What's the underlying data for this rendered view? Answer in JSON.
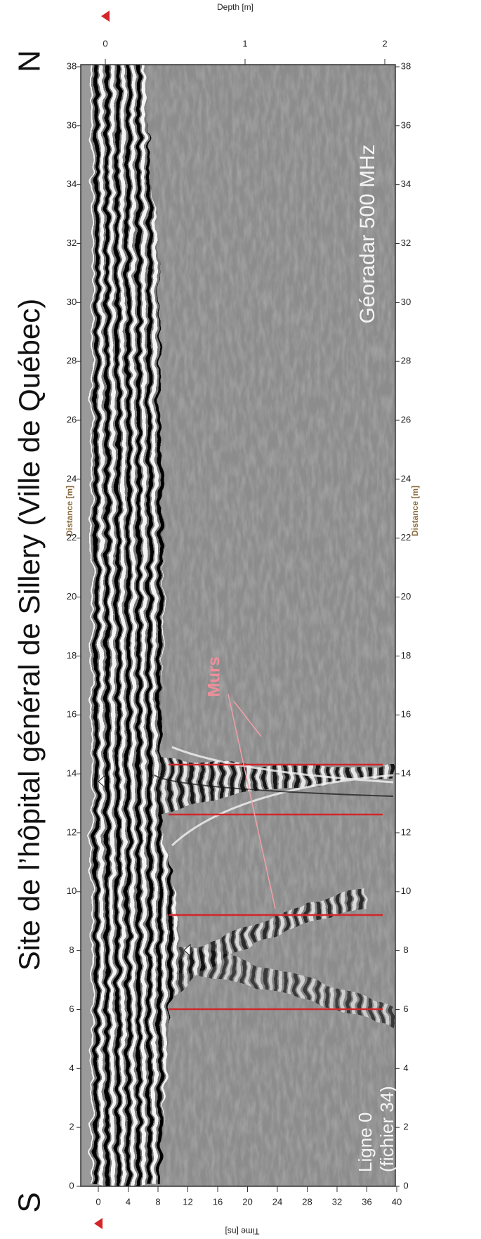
{
  "title": "Site de l’hôpital général de Sillery (Ville de Québec)",
  "direction_start": "S",
  "direction_end": "N",
  "annotation": "Murs",
  "instrument": "Géoradar 500 MHz",
  "profile": {
    "line": "Ligne 0",
    "file": "(fichier 34)"
  },
  "axes": {
    "distance": {
      "label": "Distance [m]",
      "ticks": [
        0,
        2,
        4,
        6,
        8,
        10,
        12,
        14,
        16,
        18,
        20,
        22,
        24,
        26,
        28,
        30,
        32,
        34,
        36,
        38
      ]
    },
    "time": {
      "label": "Time [ns]",
      "ticks": [
        0,
        4,
        8,
        12,
        16,
        20,
        24,
        28,
        32,
        36,
        40
      ]
    },
    "depth": {
      "label": "Depth [m]",
      "ticks": [
        0,
        1,
        2
      ]
    }
  }
}
